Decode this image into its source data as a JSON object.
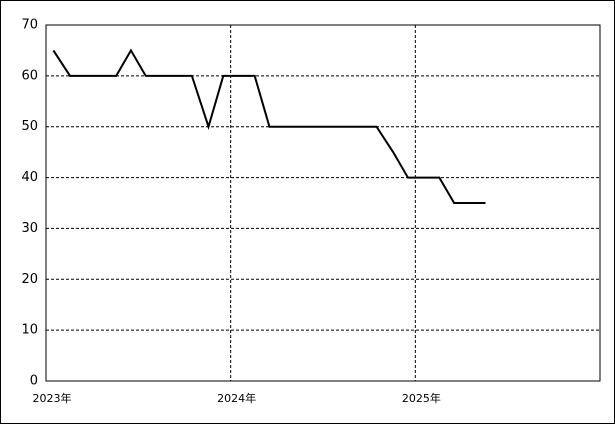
{
  "chart_data": {
    "type": "line",
    "x": [
      2023.04,
      2023.13,
      2023.21,
      2023.29,
      2023.38,
      2023.46,
      2023.54,
      2023.63,
      2023.71,
      2023.79,
      2023.88,
      2023.96,
      2024.04,
      2024.13,
      2024.21,
      2024.29,
      2024.38,
      2024.46,
      2024.54,
      2024.63,
      2024.71,
      2024.79,
      2024.88,
      2024.96,
      2025.04,
      2025.13,
      2025.21,
      2025.29,
      2025.38
    ],
    "series": [
      {
        "color": "#000000",
        "values": [
          65,
          60,
          60,
          60,
          60,
          65,
          60,
          60,
          60,
          60,
          50,
          60,
          60,
          60,
          50,
          50,
          50,
          50,
          50,
          50,
          50,
          50,
          45,
          40,
          40,
          40,
          35,
          35,
          35
        ]
      }
    ],
    "xlim": [
      2023,
      2026
    ],
    "xticks": [
      {
        "value": 2023,
        "label": "2023年"
      },
      {
        "value": 2024,
        "label": "2024年"
      },
      {
        "value": 2025,
        "label": "2025年"
      }
    ],
    "ylim": [
      0,
      70
    ],
    "yticks": [
      0,
      10,
      20,
      30,
      40,
      50,
      60,
      70
    ],
    "grid": true
  }
}
